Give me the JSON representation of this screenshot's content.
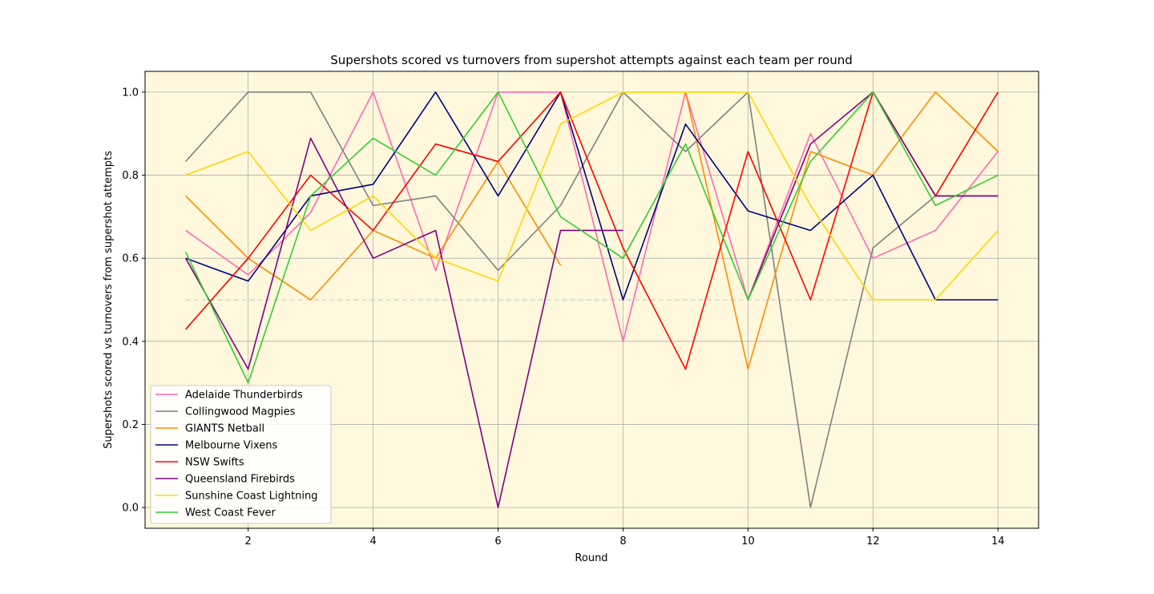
{
  "chart_data": {
    "type": "line",
    "title": "Supershots scored vs turnovers from supershot attempts against each team per round",
    "xlabel": "Round",
    "ylabel": "Supershots scored vs turnovers from supershot attempts",
    "xlim": [
      0.35,
      14.65
    ],
    "ylim": [
      -0.05,
      1.05
    ],
    "xticks": [
      2,
      4,
      6,
      8,
      10,
      12,
      14
    ],
    "yticks": [
      0.0,
      0.2,
      0.4,
      0.6,
      0.8,
      1.0
    ],
    "ytick_labels": [
      "0.0",
      "0.2",
      "0.4",
      "0.6",
      "0.8",
      "1.0"
    ],
    "grid": true,
    "background": "#fff8dc",
    "legend_position": "lower-left",
    "reference_line": {
      "y": 0.5,
      "color": "#d3d3d3",
      "style": "dashed"
    },
    "series": [
      {
        "name": "Adelaide Thunderbirds",
        "color": "#ff69b4",
        "x": [
          1,
          2,
          3,
          4,
          5,
          6,
          7,
          8,
          9,
          10,
          11,
          12,
          13,
          14
        ],
        "y": [
          0.667,
          0.56,
          0.71,
          1.0,
          0.57,
          1.0,
          1.0,
          0.4,
          1.0,
          0.5,
          0.9,
          0.6,
          0.667,
          0.857
        ]
      },
      {
        "name": "Collingwood Magpies",
        "color": "#808080",
        "x": [
          1,
          2,
          3,
          4,
          5,
          6,
          7,
          8,
          9,
          10,
          11,
          12,
          13,
          14
        ],
        "y": [
          0.833,
          1.0,
          1.0,
          0.727,
          0.75,
          0.571,
          0.727,
          1.0,
          0.857,
          1.0,
          0.0,
          0.625,
          0.75,
          0.75
        ]
      },
      {
        "name": "GIANTS Netball",
        "color": "#ff8c00",
        "x": [
          1,
          2,
          3,
          4,
          5,
          6,
          7,
          null,
          9,
          10,
          11,
          12,
          13,
          14
        ],
        "y": [
          0.75,
          0.6,
          0.5,
          0.667,
          0.6,
          0.833,
          0.583,
          null,
          1.0,
          0.333,
          0.857,
          0.8,
          1.0,
          0.857
        ]
      },
      {
        "name": "Melbourne Vixens",
        "color": "#000080",
        "x": [
          1,
          2,
          3,
          4,
          5,
          6,
          7,
          8,
          9,
          10,
          11,
          12,
          13,
          14
        ],
        "y": [
          0.6,
          0.545,
          0.75,
          0.778,
          1.0,
          0.75,
          1.0,
          0.5,
          0.923,
          0.714,
          0.667,
          0.8,
          0.5,
          0.5
        ]
      },
      {
        "name": "NSW Swifts",
        "color": "#ff0000",
        "x": [
          1,
          2,
          3,
          4,
          5,
          6,
          7,
          8,
          9,
          10,
          11,
          12,
          13,
          14
        ],
        "y": [
          0.429,
          0.6,
          0.8,
          0.667,
          0.875,
          0.833,
          1.0,
          0.625,
          0.333,
          0.857,
          0.5,
          1.0,
          0.75,
          1.0
        ]
      },
      {
        "name": "Queensland Firebirds",
        "color": "#800080",
        "x": [
          1,
          2,
          3,
          4,
          5,
          6,
          7,
          8,
          9,
          10,
          11,
          12,
          13,
          14
        ],
        "y": [
          0.6,
          0.333,
          0.889,
          0.6,
          0.667,
          0.0,
          0.667,
          0.667,
          null,
          0.5,
          0.875,
          1.0,
          0.75,
          0.75
        ]
      },
      {
        "name": "Sunshine Coast Lightning",
        "color": "#ffd700",
        "x": [
          1,
          2,
          3,
          4,
          5,
          6,
          7,
          8,
          9,
          10,
          11,
          12,
          13,
          14
        ],
        "y": [
          0.8,
          0.857,
          0.667,
          0.75,
          0.6,
          0.545,
          0.923,
          1.0,
          1.0,
          1.0,
          0.727,
          0.5,
          0.5,
          0.667
        ]
      },
      {
        "name": "West Coast Fever",
        "color": "#32cd32",
        "x": [
          1,
          2,
          3,
          4,
          5,
          6,
          7,
          8,
          9,
          10,
          11,
          12,
          13,
          14
        ],
        "y": [
          0.615,
          0.3,
          0.75,
          0.889,
          0.8,
          1.0,
          0.7,
          0.6,
          0.875,
          0.5,
          0.833,
          1.0,
          0.727,
          0.8
        ]
      }
    ]
  }
}
